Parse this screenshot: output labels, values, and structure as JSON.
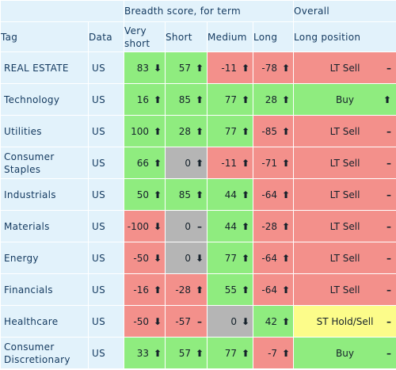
{
  "colors": {
    "header_bg": "#e2f2fb",
    "header_text": "#13395f",
    "green": "#8fec7f",
    "red": "#f3908b",
    "gray": "#b5b5b5",
    "yellow": "#fcfc8a"
  },
  "header": {
    "group_breadth": "Breadth score, for term",
    "group_overall": "Overall",
    "col_tag": "Tag",
    "col_data": "Data",
    "col_very_short": "Very short",
    "col_short": "Short",
    "col_medium": "Medium",
    "col_long": "Long",
    "col_long_position": "Long position"
  },
  "rows": [
    {
      "tag": "REAL ESTATE",
      "data": "US",
      "scores": [
        {
          "v": "83",
          "a": "⬇",
          "c": "g"
        },
        {
          "v": "57",
          "a": "⬆",
          "c": "g"
        },
        {
          "v": "-11",
          "a": "⬆",
          "c": "r"
        },
        {
          "v": "-78",
          "a": "⬆",
          "c": "r"
        }
      ],
      "overall": {
        "v": "LT Sell",
        "a": "–",
        "c": "r"
      }
    },
    {
      "tag": "Technology",
      "data": "US",
      "scores": [
        {
          "v": "16",
          "a": "⬆",
          "c": "g"
        },
        {
          "v": "85",
          "a": "⬆",
          "c": "g"
        },
        {
          "v": "77",
          "a": "⬆",
          "c": "g"
        },
        {
          "v": "28",
          "a": "⬆",
          "c": "g"
        }
      ],
      "overall": {
        "v": "Buy",
        "a": "⬆",
        "c": "g"
      }
    },
    {
      "tag": "Utilities",
      "data": "US",
      "scores": [
        {
          "v": "100",
          "a": "⬆",
          "c": "g"
        },
        {
          "v": "28",
          "a": "⬆",
          "c": "g"
        },
        {
          "v": "77",
          "a": "⬆",
          "c": "g"
        },
        {
          "v": "-85",
          "a": "⬆",
          "c": "r"
        }
      ],
      "overall": {
        "v": "LT Sell",
        "a": "–",
        "c": "r"
      }
    },
    {
      "tag": "Consumer Staples",
      "data": "US",
      "scores": [
        {
          "v": "66",
          "a": "⬆",
          "c": "g"
        },
        {
          "v": "0",
          "a": "⬆",
          "c": "n"
        },
        {
          "v": "-11",
          "a": "⬆",
          "c": "r"
        },
        {
          "v": "-71",
          "a": "⬆",
          "c": "r"
        }
      ],
      "overall": {
        "v": "LT Sell",
        "a": "–",
        "c": "r"
      }
    },
    {
      "tag": "Industrials",
      "data": "US",
      "scores": [
        {
          "v": "50",
          "a": "⬆",
          "c": "g"
        },
        {
          "v": "85",
          "a": "⬆",
          "c": "g"
        },
        {
          "v": "44",
          "a": "⬆",
          "c": "g"
        },
        {
          "v": "-64",
          "a": "⬆",
          "c": "r"
        }
      ],
      "overall": {
        "v": "LT Sell",
        "a": "–",
        "c": "r"
      }
    },
    {
      "tag": "Materials",
      "data": "US",
      "scores": [
        {
          "v": "-100",
          "a": "⬇",
          "c": "r"
        },
        {
          "v": "0",
          "a": "–",
          "c": "n"
        },
        {
          "v": "44",
          "a": "⬆",
          "c": "g"
        },
        {
          "v": "-28",
          "a": "⬆",
          "c": "r"
        }
      ],
      "overall": {
        "v": "LT Sell",
        "a": "–",
        "c": "r"
      }
    },
    {
      "tag": "Energy",
      "data": "US",
      "scores": [
        {
          "v": "-50",
          "a": "⬇",
          "c": "r"
        },
        {
          "v": "0",
          "a": "⬇",
          "c": "n"
        },
        {
          "v": "77",
          "a": "⬆",
          "c": "g"
        },
        {
          "v": "-64",
          "a": "⬆",
          "c": "r"
        }
      ],
      "overall": {
        "v": "LT Sell",
        "a": "–",
        "c": "r"
      }
    },
    {
      "tag": "Financials",
      "data": "US",
      "scores": [
        {
          "v": "-16",
          "a": "⬆",
          "c": "r"
        },
        {
          "v": "-28",
          "a": "⬆",
          "c": "r"
        },
        {
          "v": "55",
          "a": "⬆",
          "c": "g"
        },
        {
          "v": "-64",
          "a": "⬆",
          "c": "r"
        }
      ],
      "overall": {
        "v": "LT Sell",
        "a": "–",
        "c": "r"
      }
    },
    {
      "tag": "Healthcare",
      "data": "US",
      "scores": [
        {
          "v": "-50",
          "a": "⬇",
          "c": "r"
        },
        {
          "v": "-57",
          "a": "–",
          "c": "r"
        },
        {
          "v": "0",
          "a": "⬇",
          "c": "n"
        },
        {
          "v": "42",
          "a": "⬆",
          "c": "g"
        }
      ],
      "overall": {
        "v": "ST Hold/Sell",
        "a": "–",
        "c": "y"
      }
    },
    {
      "tag": "Consumer Discretionary",
      "data": "US",
      "scores": [
        {
          "v": "33",
          "a": "⬆",
          "c": "g"
        },
        {
          "v": "57",
          "a": "⬆",
          "c": "g"
        },
        {
          "v": "77",
          "a": "⬆",
          "c": "g"
        },
        {
          "v": "-7",
          "a": "⬆",
          "c": "r"
        }
      ],
      "overall": {
        "v": "Buy",
        "a": "–",
        "c": "g"
      }
    }
  ]
}
